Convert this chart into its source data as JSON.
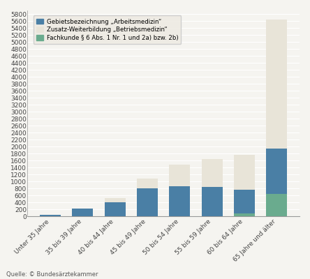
{
  "categories": [
    "Unter 35 Jahre",
    "35 bis 39 Jahre",
    "40 bis 44 Jahre",
    "45 bis 49 Jahre",
    "50 bis 54 Jahre",
    "55 bis 59 Jahre",
    "60 bis 64 Jahre",
    "65 Jahre und älter"
  ],
  "blue_values": [
    50,
    220,
    400,
    800,
    860,
    840,
    760,
    1950
  ],
  "beige_values": [
    0,
    0,
    130,
    285,
    620,
    810,
    1000,
    3700
  ],
  "green_values": [
    0,
    0,
    0,
    0,
    0,
    0,
    80,
    650
  ],
  "blue_color": "#4a7fa5",
  "beige_color": "#e8e4d8",
  "green_color": "#6aab8e",
  "legend_labels": [
    "Gebietsbezeichnung „Arbeitsmedizin“",
    "Zusatz-Weiterbildung „Betriebsmedizin“",
    "Fachkunde § 6 Abs. 1 Nr. 1 und 2a) bzw. 2b)"
  ],
  "yticks": [
    0,
    200,
    400,
    600,
    800,
    1000,
    1200,
    1400,
    1600,
    1800,
    2000,
    2200,
    2400,
    2600,
    2800,
    3000,
    3200,
    3400,
    3600,
    3800,
    4000,
    4200,
    4400,
    4600,
    4800,
    5000,
    5200,
    5400,
    5600,
    5800
  ],
  "ylim": [
    0,
    5900
  ],
  "source": "Quelle: © Bundesärztekammer",
  "background_color": "#f5f4f0",
  "grid_color": "#ffffff",
  "bar_width": 0.65
}
